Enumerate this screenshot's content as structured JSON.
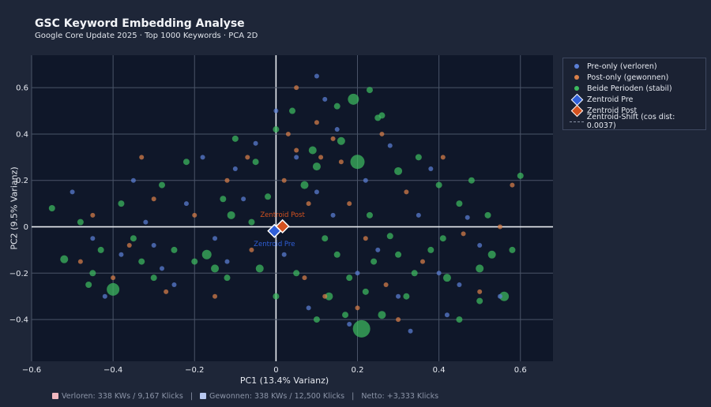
{
  "chart_data": {
    "type": "scatter",
    "title": "GSC Keyword Embedding Analyse",
    "subtitle": "Google Core Update 2025 · Top 1000 Keywords · PCA 2D",
    "xlabel": "PC1 (13.4% Varianz)",
    "ylabel": "PC2 (9.5% Varianz)",
    "xlim": [
      -0.6,
      0.68
    ],
    "ylim": [
      -0.58,
      0.74
    ],
    "xticks": [
      -0.6,
      -0.4,
      -0.2,
      0,
      0.2,
      0.4,
      0.6
    ],
    "xtick_labels": [
      "−0.6",
      "−0.4",
      "−0.2",
      "0",
      "0.2",
      "0.4",
      "0.6"
    ],
    "yticks": [
      -0.4,
      -0.2,
      0,
      0.2,
      0.4,
      0.6
    ],
    "ytick_labels": [
      "−0.4",
      "−0.2",
      "0",
      "0.2",
      "0.4",
      "0.6"
    ],
    "grid": true,
    "legend_position": "right",
    "series": [
      {
        "name": "Pre-only (verloren)",
        "color": "#5b7fd6",
        "points": [
          [
            -0.45,
            -0.05,
            3
          ],
          [
            -0.38,
            -0.12,
            3
          ],
          [
            -0.32,
            0.02,
            3
          ],
          [
            -0.28,
            -0.18,
            3
          ],
          [
            -0.22,
            0.1,
            3
          ],
          [
            -0.15,
            -0.05,
            3
          ],
          [
            -0.1,
            0.25,
            3
          ],
          [
            -0.05,
            0.36,
            3
          ],
          [
            0.0,
            0.5,
            3
          ],
          [
            0.05,
            0.3,
            3
          ],
          [
            0.1,
            0.15,
            3
          ],
          [
            0.12,
            0.55,
            3
          ],
          [
            0.15,
            0.42,
            3
          ],
          [
            0.2,
            -0.2,
            3
          ],
          [
            0.25,
            -0.1,
            3
          ],
          [
            0.3,
            -0.3,
            3
          ],
          [
            0.35,
            0.05,
            3
          ],
          [
            0.4,
            -0.2,
            3
          ],
          [
            0.45,
            -0.25,
            3
          ],
          [
            0.47,
            0.04,
            3
          ],
          [
            0.5,
            -0.08,
            3
          ],
          [
            0.55,
            -0.3,
            3
          ],
          [
            -0.5,
            0.15,
            3
          ],
          [
            -0.42,
            -0.3,
            3
          ],
          [
            -0.35,
            0.2,
            3
          ],
          [
            -0.25,
            -0.25,
            3
          ],
          [
            -0.18,
            0.3,
            3
          ],
          [
            -0.08,
            0.12,
            3
          ],
          [
            0.02,
            -0.12,
            3
          ],
          [
            0.08,
            -0.35,
            3
          ],
          [
            0.18,
            -0.42,
            3
          ],
          [
            0.22,
            0.2,
            3
          ],
          [
            0.28,
            0.35,
            3
          ],
          [
            0.33,
            -0.45,
            3
          ],
          [
            0.38,
            0.25,
            3
          ],
          [
            0.1,
            0.65,
            3
          ],
          [
            -0.3,
            -0.08,
            3
          ],
          [
            -0.12,
            -0.15,
            3
          ],
          [
            0.14,
            0.05,
            3
          ],
          [
            0.42,
            -0.38,
            3
          ]
        ]
      },
      {
        "name": "Post-only (gewonnen)",
        "color": "#d9804a",
        "points": [
          [
            0.05,
            0.6,
            3
          ],
          [
            -0.07,
            0.3,
            3
          ],
          [
            0.1,
            0.45,
            3
          ],
          [
            0.14,
            0.38,
            3
          ],
          [
            0.16,
            0.28,
            3
          ],
          [
            -0.45,
            0.05,
            3
          ],
          [
            -0.36,
            -0.08,
            3
          ],
          [
            -0.3,
            0.12,
            3
          ],
          [
            -0.27,
            -0.28,
            3
          ],
          [
            -0.2,
            0.05,
            3
          ],
          [
            -0.12,
            0.2,
            3
          ],
          [
            -0.06,
            -0.1,
            3
          ],
          [
            0.02,
            0.2,
            3
          ],
          [
            0.08,
            0.1,
            3
          ],
          [
            0.22,
            -0.05,
            3
          ],
          [
            0.27,
            -0.25,
            3
          ],
          [
            0.32,
            0.15,
            3
          ],
          [
            0.36,
            -0.15,
            3
          ],
          [
            0.46,
            -0.03,
            3
          ],
          [
            0.5,
            -0.28,
            3
          ],
          [
            0.58,
            0.18,
            3
          ],
          [
            0.41,
            0.3,
            3
          ],
          [
            0.07,
            -0.22,
            3
          ],
          [
            0.12,
            -0.3,
            3
          ],
          [
            -0.4,
            -0.22,
            3
          ],
          [
            -0.48,
            -0.15,
            3
          ],
          [
            -0.33,
            0.3,
            3
          ],
          [
            -0.15,
            -0.3,
            3
          ],
          [
            0.18,
            0.1,
            3
          ],
          [
            0.26,
            0.4,
            3
          ],
          [
            0.03,
            0.4,
            3
          ],
          [
            0.11,
            0.3,
            3
          ],
          [
            0.05,
            0.33,
            3
          ],
          [
            0.2,
            -0.35,
            3
          ],
          [
            0.3,
            -0.4,
            3
          ],
          [
            0.55,
            0.0,
            3
          ]
        ]
      },
      {
        "name": "Beide Perioden (stabil)",
        "color": "#3dbb5f",
        "points": [
          [
            0.19,
            0.55,
            7
          ],
          [
            0.2,
            0.28,
            9
          ],
          [
            0.21,
            -0.44,
            11
          ],
          [
            0.09,
            0.33,
            5
          ],
          [
            0.15,
            0.52,
            4
          ],
          [
            0.25,
            0.47,
            4
          ],
          [
            -0.4,
            -0.27,
            8
          ],
          [
            -0.52,
            -0.14,
            5
          ],
          [
            -0.45,
            -0.2,
            4
          ],
          [
            -0.35,
            -0.05,
            4
          ],
          [
            -0.3,
            -0.22,
            4
          ],
          [
            -0.17,
            -0.12,
            6
          ],
          [
            -0.15,
            -0.18,
            5
          ],
          [
            -0.2,
            -0.15,
            4
          ],
          [
            -0.11,
            0.05,
            5
          ],
          [
            -0.04,
            -0.18,
            5
          ],
          [
            -0.02,
            0.13,
            4
          ],
          [
            0.07,
            0.18,
            5
          ],
          [
            0.1,
            0.26,
            5
          ],
          [
            0.16,
            0.37,
            5
          ],
          [
            0.3,
            0.24,
            5
          ],
          [
            0.23,
            0.05,
            4
          ],
          [
            0.28,
            -0.04,
            4
          ],
          [
            0.38,
            -0.1,
            4
          ],
          [
            0.42,
            -0.22,
            5
          ],
          [
            0.5,
            -0.18,
            5
          ],
          [
            0.53,
            -0.12,
            5
          ],
          [
            0.56,
            -0.3,
            6
          ],
          [
            0.58,
            -0.1,
            4
          ],
          [
            0.4,
            0.18,
            4
          ],
          [
            0.35,
            0.3,
            4
          ],
          [
            0.13,
            -0.3,
            5
          ],
          [
            0.26,
            -0.38,
            5
          ],
          [
            0.32,
            -0.3,
            4
          ],
          [
            0.45,
            -0.4,
            4
          ],
          [
            0.5,
            -0.32,
            4
          ],
          [
            -0.48,
            0.02,
            4
          ],
          [
            -0.55,
            0.08,
            4
          ],
          [
            -0.38,
            0.1,
            4
          ],
          [
            -0.28,
            0.18,
            4
          ],
          [
            -0.22,
            0.28,
            4
          ],
          [
            -0.1,
            0.38,
            4
          ],
          [
            -0.05,
            0.28,
            4
          ],
          [
            0.0,
            0.42,
            4
          ],
          [
            0.04,
            0.5,
            4
          ],
          [
            0.23,
            0.59,
            4
          ],
          [
            0.26,
            0.48,
            4
          ],
          [
            -0.25,
            -0.1,
            4
          ],
          [
            -0.33,
            -0.15,
            4
          ],
          [
            -0.43,
            -0.1,
            4
          ],
          [
            -0.46,
            -0.25,
            4
          ],
          [
            -0.12,
            -0.22,
            4
          ],
          [
            0.0,
            -0.3,
            4
          ],
          [
            0.05,
            -0.2,
            4
          ],
          [
            0.15,
            -0.12,
            4
          ],
          [
            0.18,
            -0.22,
            4
          ],
          [
            0.24,
            -0.15,
            4
          ],
          [
            0.34,
            -0.2,
            4
          ],
          [
            0.41,
            -0.05,
            4
          ],
          [
            0.45,
            0.1,
            4
          ],
          [
            0.52,
            0.05,
            4
          ],
          [
            0.6,
            0.22,
            4
          ],
          [
            -0.13,
            0.12,
            4
          ],
          [
            -0.06,
            0.02,
            4
          ],
          [
            0.12,
            -0.05,
            4
          ],
          [
            0.22,
            -0.28,
            4
          ],
          [
            0.1,
            -0.4,
            4
          ],
          [
            0.17,
            -0.38,
            4
          ],
          [
            0.3,
            -0.12,
            4
          ],
          [
            0.48,
            0.2,
            4
          ]
        ]
      }
    ],
    "centroids": [
      {
        "name": "Zentroid Pre",
        "label": "Zentroid Pre",
        "x": -0.004,
        "y": -0.018,
        "color": "#2f5fd8"
      },
      {
        "name": "Zentroid Post",
        "label": "Zentroid Post",
        "x": 0.016,
        "y": 0.002,
        "color": "#d4521f"
      }
    ],
    "shift_legend": "Zentroid-Shift (cos dist: 0.0037)"
  },
  "footer": {
    "lost": "Verloren: 338 KWs / 9,167 Klicks",
    "sep1": "|",
    "won": "Gewonnen: 338 KWs / 12,500 Klicks",
    "sep2": "|",
    "net": "Netto: +3,333 Klicks",
    "lost_color": "#f0b8c0",
    "won_color": "#b8c8f0"
  }
}
